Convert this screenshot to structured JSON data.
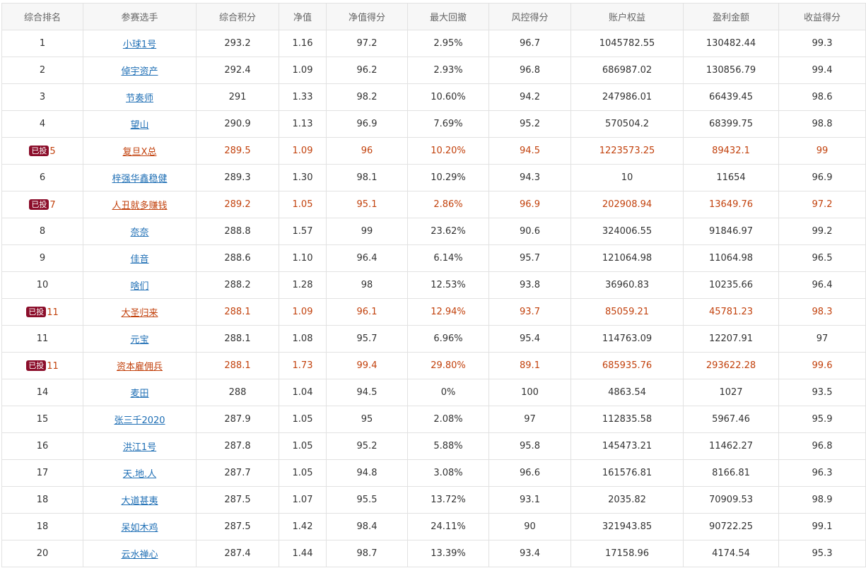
{
  "columns": [
    "综合排名",
    "参赛选手",
    "综合积分",
    "净值",
    "净值得分",
    "最大回撤",
    "风控得分",
    "账户权益",
    "盈利金额",
    "收益得分"
  ],
  "badge_label": "已投",
  "colors": {
    "highlight_text": "#c2410c",
    "link": "#1f6fb5",
    "badge_bg": "#8b0d2a"
  },
  "rows": [
    {
      "rank": "1",
      "badge": false,
      "player": "小球1号",
      "score": "293.2",
      "nav": "1.16",
      "nav_score": "97.2",
      "max_dd": "2.95%",
      "risk_score": "96.7",
      "equity": "1045782.55",
      "profit": "130482.44",
      "return_score": "99.3"
    },
    {
      "rank": "2",
      "badge": false,
      "player": "倬宇资产",
      "score": "292.4",
      "nav": "1.09",
      "nav_score": "96.2",
      "max_dd": "2.93%",
      "risk_score": "96.8",
      "equity": "686987.02",
      "profit": "130856.79",
      "return_score": "99.4"
    },
    {
      "rank": "3",
      "badge": false,
      "player": "节奏师",
      "score": "291",
      "nav": "1.33",
      "nav_score": "98.2",
      "max_dd": "10.60%",
      "risk_score": "94.2",
      "equity": "247986.01",
      "profit": "66439.45",
      "return_score": "98.6"
    },
    {
      "rank": "4",
      "badge": false,
      "player": "望山",
      "score": "290.9",
      "nav": "1.13",
      "nav_score": "96.9",
      "max_dd": "7.69%",
      "risk_score": "95.2",
      "equity": "570504.2",
      "profit": "68399.75",
      "return_score": "98.8"
    },
    {
      "rank": "5",
      "badge": true,
      "player": "复旦X总",
      "score": "289.5",
      "nav": "1.09",
      "nav_score": "96",
      "max_dd": "10.20%",
      "risk_score": "94.5",
      "equity": "1223573.25",
      "profit": "89432.1",
      "return_score": "99"
    },
    {
      "rank": "6",
      "badge": false,
      "player": "梓强华鑫稳健",
      "score": "289.3",
      "nav": "1.30",
      "nav_score": "98.1",
      "max_dd": "10.29%",
      "risk_score": "94.3",
      "equity": "10",
      "profit": "11654",
      "return_score": "96.9"
    },
    {
      "rank": "7",
      "badge": true,
      "player": "人丑就多赚钱",
      "score": "289.2",
      "nav": "1.05",
      "nav_score": "95.1",
      "max_dd": "2.86%",
      "risk_score": "96.9",
      "equity": "202908.94",
      "profit": "13649.76",
      "return_score": "97.2"
    },
    {
      "rank": "8",
      "badge": false,
      "player": "奈奈",
      "score": "288.8",
      "nav": "1.57",
      "nav_score": "99",
      "max_dd": "23.62%",
      "risk_score": "90.6",
      "equity": "324006.55",
      "profit": "91846.97",
      "return_score": "99.2"
    },
    {
      "rank": "9",
      "badge": false,
      "player": "佳音",
      "score": "288.6",
      "nav": "1.10",
      "nav_score": "96.4",
      "max_dd": "6.14%",
      "risk_score": "95.7",
      "equity": "121064.98",
      "profit": "11064.98",
      "return_score": "96.5"
    },
    {
      "rank": "10",
      "badge": false,
      "player": "啥们",
      "score": "288.2",
      "nav": "1.28",
      "nav_score": "98",
      "max_dd": "12.53%",
      "risk_score": "93.8",
      "equity": "36960.83",
      "profit": "10235.66",
      "return_score": "96.4"
    },
    {
      "rank": "11",
      "badge": true,
      "player": "大圣归来",
      "score": "288.1",
      "nav": "1.09",
      "nav_score": "96.1",
      "max_dd": "12.94%",
      "risk_score": "93.7",
      "equity": "85059.21",
      "profit": "45781.23",
      "return_score": "98.3"
    },
    {
      "rank": "11",
      "badge": false,
      "player": "元宝",
      "score": "288.1",
      "nav": "1.08",
      "nav_score": "95.7",
      "max_dd": "6.96%",
      "risk_score": "95.4",
      "equity": "114763.09",
      "profit": "12207.91",
      "return_score": "97"
    },
    {
      "rank": "11",
      "badge": true,
      "player": "资本雇佣兵",
      "score": "288.1",
      "nav": "1.73",
      "nav_score": "99.4",
      "max_dd": "29.80%",
      "risk_score": "89.1",
      "equity": "685935.76",
      "profit": "293622.28",
      "return_score": "99.6"
    },
    {
      "rank": "14",
      "badge": false,
      "player": "麦田",
      "score": "288",
      "nav": "1.04",
      "nav_score": "94.5",
      "max_dd": "0%",
      "risk_score": "100",
      "equity": "4863.54",
      "profit": "1027",
      "return_score": "93.5"
    },
    {
      "rank": "15",
      "badge": false,
      "player": "张三千2020",
      "score": "287.9",
      "nav": "1.05",
      "nav_score": "95",
      "max_dd": "2.08%",
      "risk_score": "97",
      "equity": "112835.58",
      "profit": "5967.46",
      "return_score": "95.9"
    },
    {
      "rank": "16",
      "badge": false,
      "player": "洪江1号",
      "score": "287.8",
      "nav": "1.05",
      "nav_score": "95.2",
      "max_dd": "5.88%",
      "risk_score": "95.8",
      "equity": "145473.21",
      "profit": "11462.27",
      "return_score": "96.8"
    },
    {
      "rank": "17",
      "badge": false,
      "player": "天.地.人",
      "score": "287.7",
      "nav": "1.05",
      "nav_score": "94.8",
      "max_dd": "3.08%",
      "risk_score": "96.6",
      "equity": "161576.81",
      "profit": "8166.81",
      "return_score": "96.3"
    },
    {
      "rank": "18",
      "badge": false,
      "player": "大道甚夷",
      "score": "287.5",
      "nav": "1.07",
      "nav_score": "95.5",
      "max_dd": "13.72%",
      "risk_score": "93.1",
      "equity": "2035.82",
      "profit": "70909.53",
      "return_score": "98.9"
    },
    {
      "rank": "18",
      "badge": false,
      "player": "呆如木鸡",
      "score": "287.5",
      "nav": "1.42",
      "nav_score": "98.4",
      "max_dd": "24.11%",
      "risk_score": "90",
      "equity": "321943.85",
      "profit": "90722.25",
      "return_score": "99.1"
    },
    {
      "rank": "20",
      "badge": false,
      "player": "云水禅心",
      "score": "287.4",
      "nav": "1.44",
      "nav_score": "98.7",
      "max_dd": "13.39%",
      "risk_score": "93.4",
      "equity": "17158.96",
      "profit": "4174.54",
      "return_score": "95.3"
    }
  ]
}
